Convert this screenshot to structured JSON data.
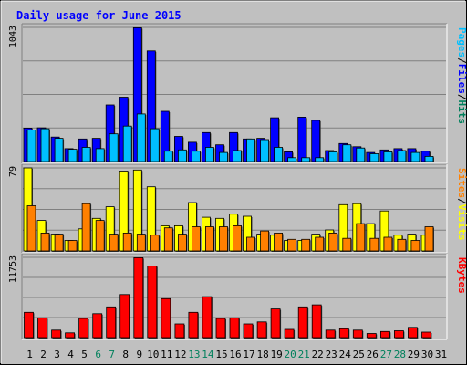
{
  "chart_data": [
    {
      "panel": "top",
      "type": "bar",
      "title": "Daily usage for June 2015",
      "y_tick_label": "1043",
      "ymax": 1043,
      "legend": [
        {
          "label": "Pages",
          "color": "#00c0ff"
        },
        {
          "label": "Files",
          "color": "#0000ff"
        },
        {
          "label": "Hits",
          "color": "#00805c"
        }
      ],
      "series": [
        {
          "name": "Hits",
          "color": "#0000ff",
          "values": [
            260,
            262,
            190,
            100,
            175,
            180,
            440,
            500,
            1040,
            860,
            390,
            195,
            150,
            225,
            130,
            225,
            175,
            180,
            340,
            75,
            345,
            320,
            85,
            140,
            115,
            70,
            90,
            100,
            100,
            80,
            0
          ]
        },
        {
          "name": "Pages",
          "color": "#00c0ff",
          "values": [
            245,
            255,
            180,
            95,
            110,
            100,
            215,
            275,
            370,
            255,
            80,
            90,
            80,
            110,
            70,
            85,
            175,
            170,
            110,
            30,
            30,
            30,
            75,
            130,
            105,
            60,
            75,
            85,
            70,
            40,
            0
          ]
        }
      ],
      "categories": [
        "1",
        "2",
        "3",
        "4",
        "5",
        "6",
        "7",
        "8",
        "9",
        "10",
        "11",
        "12",
        "13",
        "14",
        "15",
        "16",
        "17",
        "18",
        "19",
        "20",
        "21",
        "22",
        "23",
        "24",
        "25",
        "26",
        "27",
        "28",
        "29",
        "30",
        "31"
      ]
    },
    {
      "panel": "middle",
      "type": "bar",
      "y_tick_label": "79",
      "ymax": 79,
      "legend": [
        {
          "label": "Sites",
          "color": "#ff8000"
        },
        {
          "label": "Visits",
          "color": "#ffff00"
        }
      ],
      "series": [
        {
          "name": "Visits",
          "color": "#ffff00",
          "values": [
            79,
            29,
            16,
            10,
            21,
            31,
            42,
            76,
            77,
            61,
            24,
            24,
            46,
            32,
            31,
            35,
            33,
            16,
            15,
            10,
            10,
            16,
            20,
            44,
            45,
            26,
            38,
            15,
            16,
            15,
            0
          ]
        },
        {
          "name": "Sites",
          "color": "#ff8000",
          "values": [
            43,
            17,
            16,
            10,
            45,
            29,
            16,
            17,
            16,
            15,
            22,
            16,
            23,
            23,
            23,
            24,
            13,
            19,
            17,
            11,
            11,
            13,
            17,
            12,
            26,
            12,
            13,
            11,
            10,
            23,
            0
          ]
        }
      ],
      "categories": [
        "1",
        "2",
        "3",
        "4",
        "5",
        "6",
        "7",
        "8",
        "9",
        "10",
        "11",
        "12",
        "13",
        "14",
        "15",
        "16",
        "17",
        "18",
        "19",
        "20",
        "21",
        "22",
        "23",
        "24",
        "25",
        "26",
        "27",
        "28",
        "29",
        "30",
        "31"
      ]
    },
    {
      "panel": "bottom",
      "type": "bar",
      "y_tick_label": "11753",
      "ymax": 11753,
      "legend": [
        {
          "label": "KBytes",
          "color": "#ff0000"
        }
      ],
      "series": [
        {
          "name": "KBytes",
          "color": "#ff0000",
          "values": [
            3700,
            2900,
            1100,
            700,
            2800,
            3500,
            4500,
            6300,
            11700,
            10500,
            5700,
            2000,
            3700,
            6000,
            2800,
            2900,
            2000,
            2300,
            4200,
            1200,
            4500,
            4800,
            1100,
            1300,
            1100,
            600,
            900,
            1000,
            1500,
            800,
            0
          ]
        }
      ],
      "categories": [
        "1",
        "2",
        "3",
        "4",
        "5",
        "6",
        "7",
        "8",
        "9",
        "10",
        "11",
        "12",
        "13",
        "14",
        "15",
        "16",
        "17",
        "18",
        "19",
        "20",
        "21",
        "22",
        "23",
        "24",
        "25",
        "26",
        "27",
        "28",
        "29",
        "30",
        "31"
      ]
    }
  ],
  "x_labels": [
    "1",
    "2",
    "3",
    "4",
    "5",
    "6",
    "7",
    "8",
    "9",
    "10",
    "11",
    "12",
    "13",
    "14",
    "15",
    "16",
    "17",
    "18",
    "19",
    "20",
    "21",
    "22",
    "23",
    "24",
    "25",
    "26",
    "27",
    "28",
    "29",
    "30",
    "31"
  ],
  "weekend_days": [
    6,
    7,
    13,
    14,
    20,
    21,
    27,
    28
  ],
  "colors": {
    "background": "#c0c0c0",
    "weekday_label": "#000000",
    "weekend_label": "#00805c",
    "title": "#0000ff",
    "grid": "#808080"
  }
}
